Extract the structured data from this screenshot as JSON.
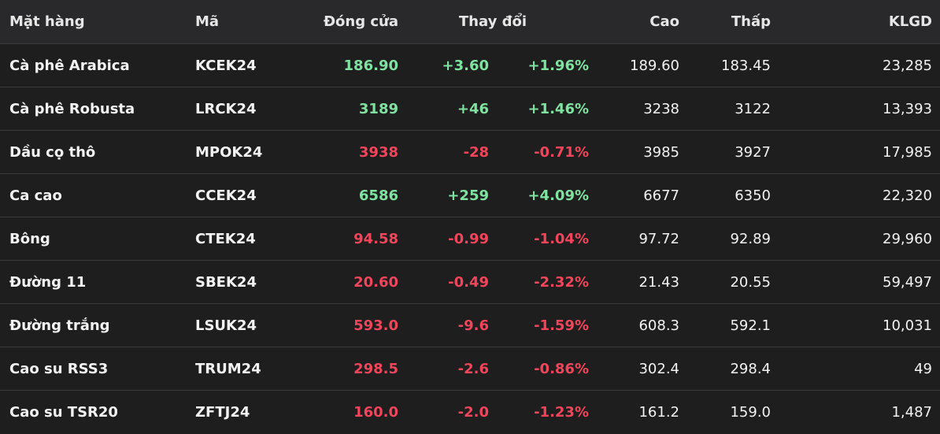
{
  "colors": {
    "up": "#7fe2a0",
    "down": "#f0455a",
    "background": "#1e1e1f",
    "header_background": "#29292b"
  },
  "headers": {
    "name": "Mặt hàng",
    "code": "Mã",
    "close": "Đóng cửa",
    "change": "Thay đổi",
    "high": "Cao",
    "low": "Thấp",
    "volume": "KLGD"
  },
  "rows": [
    {
      "name": "Cà phê Arabica",
      "code": "KCEK24",
      "close": "186.90",
      "change": "+3.60",
      "pct": "+1.96%",
      "high": "189.60",
      "low": "183.45",
      "volume": "23,285",
      "direction": "up"
    },
    {
      "name": "Cà phê Robusta",
      "code": "LRCK24",
      "close": "3189",
      "change": "+46",
      "pct": "+1.46%",
      "high": "3238",
      "low": "3122",
      "volume": "13,393",
      "direction": "up"
    },
    {
      "name": "Dầu cọ thô",
      "code": "MPOK24",
      "close": "3938",
      "change": "-28",
      "pct": "-0.71%",
      "high": "3985",
      "low": "3927",
      "volume": "17,985",
      "direction": "down"
    },
    {
      "name": "Ca cao",
      "code": "CCEK24",
      "close": "6586",
      "change": "+259",
      "pct": "+4.09%",
      "high": "6677",
      "low": "6350",
      "volume": "22,320",
      "direction": "up"
    },
    {
      "name": "Bông",
      "code": "CTEK24",
      "close": "94.58",
      "change": "-0.99",
      "pct": "-1.04%",
      "high": "97.72",
      "low": "92.89",
      "volume": "29,960",
      "direction": "down"
    },
    {
      "name": "Đường 11",
      "code": "SBEK24",
      "close": "20.60",
      "change": "-0.49",
      "pct": "-2.32%",
      "high": "21.43",
      "low": "20.55",
      "volume": "59,497",
      "direction": "down"
    },
    {
      "name": "Đường trắng",
      "code": "LSUK24",
      "close": "593.0",
      "change": "-9.6",
      "pct": "-1.59%",
      "high": "608.3",
      "low": "592.1",
      "volume": "10,031",
      "direction": "down"
    },
    {
      "name": "Cao su RSS3",
      "code": "TRUM24",
      "close": "298.5",
      "change": "-2.6",
      "pct": "-0.86%",
      "high": "302.4",
      "low": "298.4",
      "volume": "49",
      "direction": "down"
    },
    {
      "name": "Cao su TSR20",
      "code": "ZFTJ24",
      "close": "160.0",
      "change": "-2.0",
      "pct": "-1.23%",
      "high": "161.2",
      "low": "159.0",
      "volume": "1,487",
      "direction": "down"
    }
  ]
}
